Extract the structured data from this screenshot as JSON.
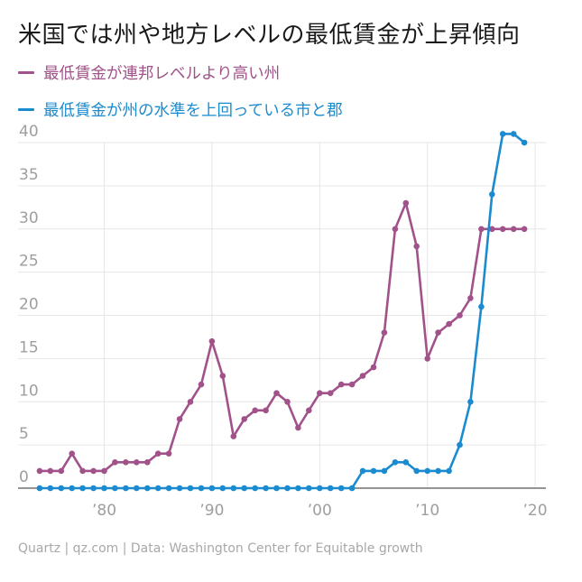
{
  "title": "米国では州や地方レベルの最低賃金が上昇傾向",
  "footer": "Quartz | qz.com | Data: Washington Center for Equitable growth",
  "colors": {
    "series_0": "#a1528a",
    "series_1": "#1b8bd0",
    "grid": "#e6e6e6",
    "axis": "#555555"
  },
  "chart_data": {
    "type": "line",
    "title": "米国では州や地方レベルの最低賃金が上昇傾向",
    "xlabel": "",
    "ylabel": "",
    "xlim": [
      1972,
      2021
    ],
    "ylim": [
      0,
      40
    ],
    "grid": true,
    "legend_position": "top-left",
    "y_ticks": [
      0,
      5,
      10,
      15,
      20,
      25,
      30,
      35,
      40
    ],
    "x_ticks": [
      1980,
      1990,
      2000,
      2010,
      2020
    ],
    "x_tick_labels": [
      "’80",
      "’90",
      "’00",
      "’10",
      "’20"
    ],
    "x": [
      1974,
      1975,
      1976,
      1977,
      1978,
      1979,
      1980,
      1981,
      1982,
      1983,
      1984,
      1985,
      1986,
      1987,
      1988,
      1989,
      1990,
      1991,
      1992,
      1993,
      1994,
      1995,
      1996,
      1997,
      1998,
      1999,
      2000,
      2001,
      2002,
      2003,
      2004,
      2005,
      2006,
      2007,
      2008,
      2009,
      2010,
      2011,
      2012,
      2013,
      2014,
      2015,
      2016,
      2017,
      2018,
      2019
    ],
    "series": [
      {
        "name": "最低賃金が連邦レベルより高い州",
        "values": [
          2,
          2,
          2,
          4,
          2,
          2,
          2,
          3,
          3,
          3,
          3,
          4,
          4,
          8,
          10,
          12,
          17,
          13,
          6,
          8,
          9,
          9,
          11,
          10,
          7,
          9,
          11,
          11,
          12,
          12,
          13,
          14,
          18,
          30,
          33,
          28,
          15,
          18,
          19,
          20,
          22,
          30,
          30,
          30,
          30,
          30
        ]
      },
      {
        "name": "最低賃金が州の水準を上回っている市と郡",
        "values": [
          0,
          0,
          0,
          0,
          0,
          0,
          0,
          0,
          0,
          0,
          0,
          0,
          0,
          0,
          0,
          0,
          0,
          0,
          0,
          0,
          0,
          0,
          0,
          0,
          0,
          0,
          0,
          0,
          0,
          0,
          2,
          2,
          2,
          3,
          3,
          2,
          2,
          2,
          2,
          5,
          10,
          21,
          34,
          41,
          41,
          40
        ]
      }
    ]
  }
}
